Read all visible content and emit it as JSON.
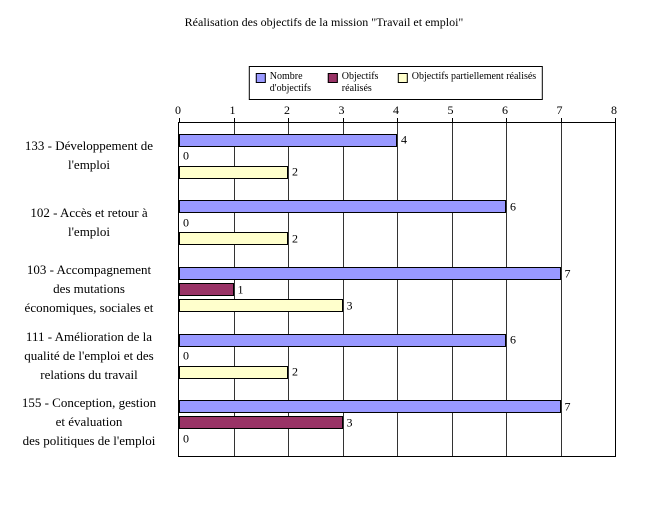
{
  "chart_data": {
    "type": "bar",
    "orientation": "horizontal",
    "title": "Réalisation des objectifs de la mission \"Travail et emploi\"",
    "categories": [
      "133 - Développement de l'emploi",
      "102 - Accès et retour à l'emploi",
      "103 - Accompagnement des mutations économiques, sociales et",
      "111 - Amélioration de la qualité de l'emploi et des relations du travail",
      "155 - Conception, gestion et évaluation des politiques de l'emploi"
    ],
    "category_lines": [
      [
        "133 - Développement de",
        "l'emploi"
      ],
      [
        "102 - Accès et retour à",
        "l'emploi"
      ],
      [
        "103 - Accompagnement",
        "des mutations",
        "économiques, sociales et"
      ],
      [
        "111 - Amélioration de la",
        "qualité de l'emploi et des",
        "relations du travail"
      ],
      [
        "155 - Conception, gestion",
        "et évaluation",
        "des politiques de l'emploi"
      ]
    ],
    "series": [
      {
        "name": "Nombre d'objectifs",
        "color": "#9999FF",
        "values": [
          4,
          6,
          7,
          6,
          7
        ]
      },
      {
        "name": "Objectifs réalisés",
        "color": "#993366",
        "values": [
          0,
          0,
          1,
          0,
          3
        ]
      },
      {
        "name": "Objectifs partiellement réalisés",
        "color": "#FFFFCC",
        "values": [
          2,
          2,
          3,
          2,
          0
        ]
      }
    ],
    "xlim": [
      0,
      8
    ],
    "xticks": [
      0,
      1,
      2,
      3,
      4,
      5,
      6,
      7,
      8
    ],
    "legend_position": "top",
    "grid": "vertical",
    "gridline_color": "#333333",
    "bar_border_color": "#000000",
    "background": "#FFFFFF"
  }
}
